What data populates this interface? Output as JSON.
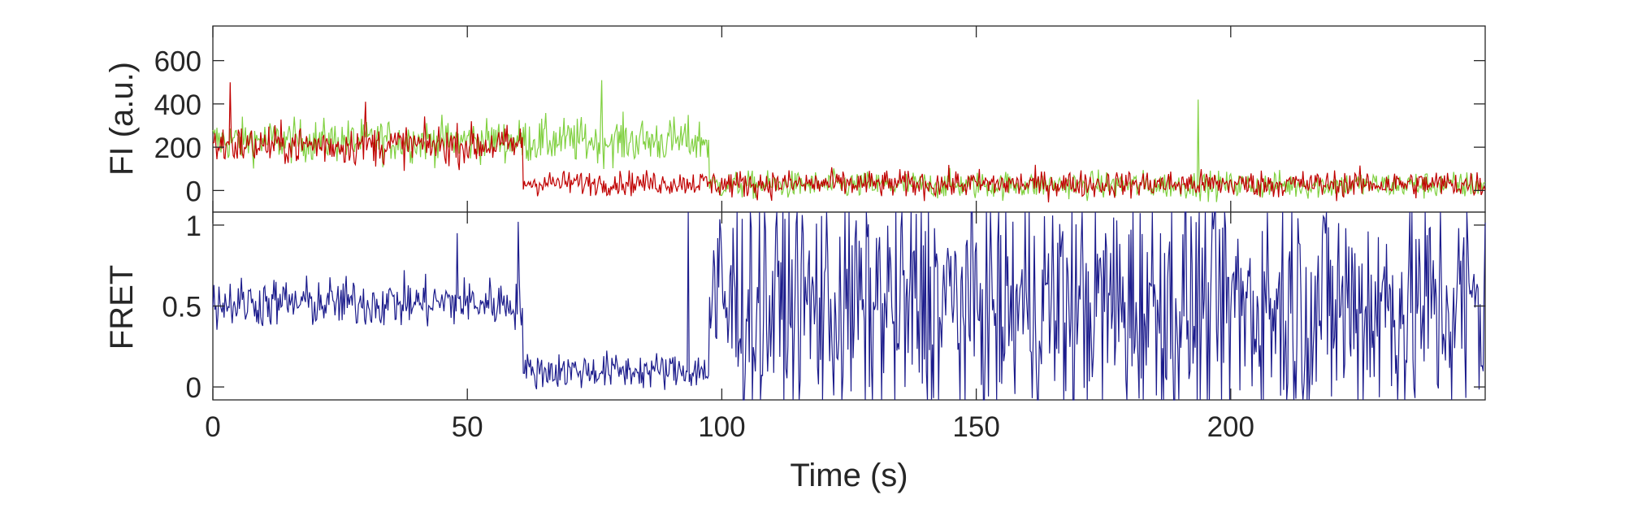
{
  "figure": {
    "background": "#ffffff",
    "axis_color": "#262626",
    "xlabel": "Time (s)"
  },
  "chart_data": [
    {
      "type": "line",
      "ylabel": "FI (a.u.)",
      "xlim": [
        0,
        250
      ],
      "ylim": [
        -100,
        760
      ],
      "xticks": [
        0,
        50,
        100,
        150,
        200
      ],
      "yticks": [
        0,
        200,
        400,
        600
      ],
      "ytick_labels": [
        "0",
        "200",
        "400",
        "600"
      ],
      "grid": false,
      "series": [
        {
          "color": "#80d040",
          "segments": [
            {
              "x_start": 0,
              "x_end": 61,
              "mean": 230,
              "noise": 70
            },
            {
              "x_start": 61,
              "x_end": 97.5,
              "mean": 230,
              "noise": 75
            },
            {
              "x_start": 97.5,
              "x_end": 250,
              "mean": 25,
              "noise": 45
            }
          ],
          "spikes": [
            {
              "x": 193.5,
              "value": 420
            },
            {
              "x": 76.5,
              "value": 510
            }
          ]
        },
        {
          "color": "#c00000",
          "segments": [
            {
              "x_start": 0,
              "x_end": 61,
              "mean": 210,
              "noise": 65
            },
            {
              "x_start": 61,
              "x_end": 97.5,
              "mean": 35,
              "noise": 40
            },
            {
              "x_start": 97.5,
              "x_end": 250,
              "mean": 30,
              "noise": 45
            }
          ],
          "spikes": [
            {
              "x": 3.5,
              "value": 500
            },
            {
              "x": 30,
              "value": 410
            }
          ]
        }
      ]
    },
    {
      "type": "line",
      "ylabel": "FRET",
      "xlim": [
        0,
        250
      ],
      "ylim": [
        -0.08,
        1.08
      ],
      "xticks": [
        0,
        50,
        100,
        150,
        200
      ],
      "xtick_labels": [
        "0",
        "50",
        "100",
        "150",
        "200"
      ],
      "yticks": [
        0,
        0.5,
        1
      ],
      "ytick_labels": [
        "0",
        "0.5",
        "1"
      ],
      "grid": false,
      "series": [
        {
          "color": "#1c1c8c",
          "segments": [
            {
              "x_start": 0,
              "x_end": 61,
              "mean": 0.52,
              "noise": 0.11
            },
            {
              "x_start": 61,
              "x_end": 97.5,
              "mean": 0.1,
              "noise": 0.08
            },
            {
              "x_start": 97.5,
              "x_end": 250,
              "mean": 0.5,
              "noise": 0.55
            }
          ],
          "spikes": [
            {
              "x": 48,
              "value": 0.95
            },
            {
              "x": 60,
              "value": 1.02
            },
            {
              "x": 93.5,
              "value": 1.08
            }
          ]
        }
      ]
    }
  ]
}
